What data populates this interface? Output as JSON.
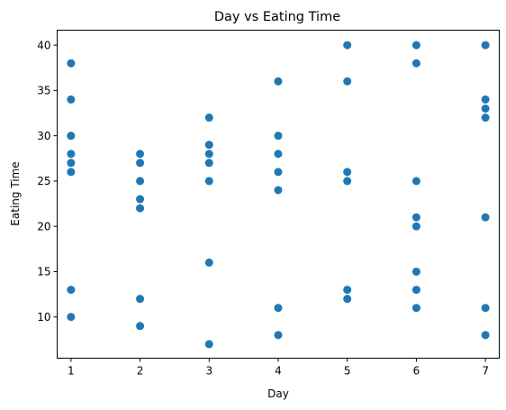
{
  "chart_data": {
    "type": "scatter",
    "title": "Day vs Eating Time",
    "xlabel": "Day",
    "ylabel": "Eating Time",
    "xlim": [
      0.8,
      7.2
    ],
    "ylim": [
      5.45,
      41.65
    ],
    "xticks": [
      1,
      2,
      3,
      4,
      5,
      6,
      7
    ],
    "yticks": [
      10,
      15,
      20,
      25,
      30,
      35,
      40
    ],
    "grid": false,
    "color": "#1f77b4",
    "series": [
      {
        "points": [
          [
            1,
            38
          ],
          [
            1,
            34
          ],
          [
            1,
            30
          ],
          [
            1,
            28
          ],
          [
            1,
            27
          ],
          [
            1,
            26
          ],
          [
            1,
            13
          ],
          [
            1,
            10
          ],
          [
            2,
            28
          ],
          [
            2,
            27
          ],
          [
            2,
            25
          ],
          [
            2,
            23
          ],
          [
            2,
            22
          ],
          [
            2,
            12
          ],
          [
            2,
            9
          ],
          [
            3,
            32
          ],
          [
            3,
            29
          ],
          [
            3,
            28
          ],
          [
            3,
            27
          ],
          [
            3,
            25
          ],
          [
            3,
            16
          ],
          [
            3,
            7
          ],
          [
            4,
            36
          ],
          [
            4,
            30
          ],
          [
            4,
            28
          ],
          [
            4,
            26
          ],
          [
            4,
            24
          ],
          [
            4,
            11
          ],
          [
            4,
            8
          ],
          [
            5,
            40
          ],
          [
            5,
            36
          ],
          [
            5,
            26
          ],
          [
            5,
            25
          ],
          [
            5,
            13
          ],
          [
            5,
            12
          ],
          [
            6,
            40
          ],
          [
            6,
            38
          ],
          [
            6,
            25
          ],
          [
            6,
            21
          ],
          [
            6,
            20
          ],
          [
            6,
            15
          ],
          [
            6,
            13
          ],
          [
            6,
            11
          ],
          [
            7,
            40
          ],
          [
            7,
            34
          ],
          [
            7,
            33
          ],
          [
            7,
            32
          ],
          [
            7,
            21
          ],
          [
            7,
            11
          ],
          [
            7,
            8
          ]
        ]
      }
    ]
  }
}
